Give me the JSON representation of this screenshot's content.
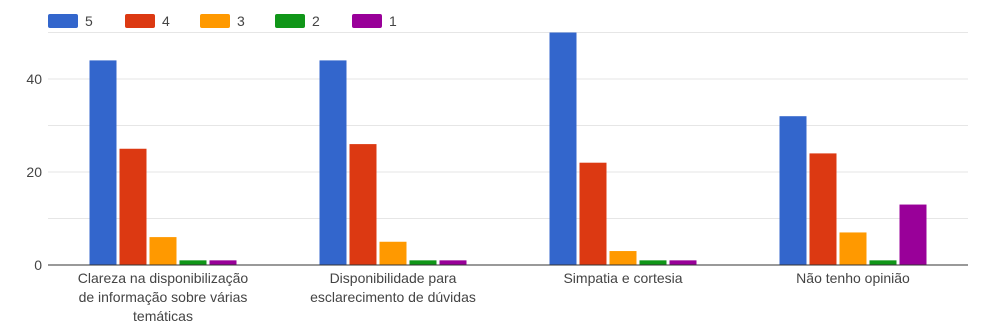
{
  "chart_data": {
    "type": "bar",
    "title": "",
    "xlabel": "",
    "ylabel": "",
    "ylim": [
      0,
      50
    ],
    "yticks": [
      0,
      20,
      40
    ],
    "grid": true,
    "legend_position": "top-left",
    "categories": [
      [
        "Clareza na disponibilização",
        "de informação sobre várias",
        "temáticas"
      ],
      [
        "Disponibilidade para",
        "esclarecimento de dúvidas"
      ],
      [
        "Simpatia e cortesia"
      ],
      [
        "Não tenho opinião"
      ]
    ],
    "series": [
      {
        "name": "5",
        "color": "#3366cc",
        "values": [
          44,
          44,
          50,
          32
        ]
      },
      {
        "name": "4",
        "color": "#dc3912",
        "values": [
          25,
          26,
          22,
          24
        ]
      },
      {
        "name": "3",
        "color": "#ff9900",
        "values": [
          6,
          5,
          3,
          7
        ]
      },
      {
        "name": "2",
        "color": "#109618",
        "values": [
          1,
          1,
          1,
          1
        ]
      },
      {
        "name": "1",
        "color": "#990099",
        "values": [
          1,
          1,
          1,
          13
        ]
      }
    ]
  }
}
